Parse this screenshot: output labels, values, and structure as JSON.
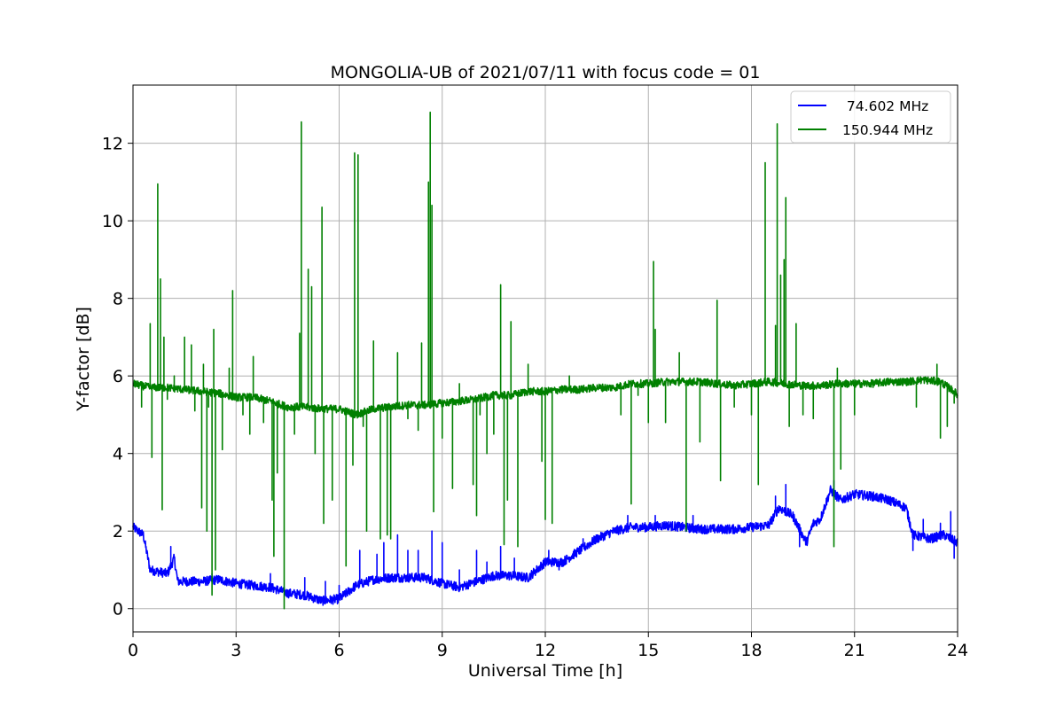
{
  "chart_data": {
    "type": "line",
    "title": "MONGOLIA-UB of 2021/07/11 with focus code = 01",
    "xlabel": "Universal Time [h]",
    "ylabel": "Y-factor [dB]",
    "xlim": [
      0,
      24
    ],
    "ylim": [
      -0.6,
      13.5
    ],
    "xticks": [
      0,
      3,
      6,
      9,
      12,
      15,
      18,
      21,
      24
    ],
    "yticks": [
      0,
      2,
      4,
      6,
      8,
      10,
      12
    ],
    "grid": true,
    "legend_position": "upper-right",
    "series": [
      {
        "name": " 74.602 MHz",
        "color": "#0000ff",
        "baseline": [
          [
            0,
            2.1
          ],
          [
            0.3,
            1.9
          ],
          [
            0.5,
            1.0
          ],
          [
            1.0,
            0.9
          ],
          [
            1.2,
            1.3
          ],
          [
            1.3,
            0.7
          ],
          [
            2.0,
            0.7
          ],
          [
            2.5,
            0.75
          ],
          [
            3.0,
            0.65
          ],
          [
            3.5,
            0.6
          ],
          [
            4.0,
            0.55
          ],
          [
            4.5,
            0.4
          ],
          [
            5.0,
            0.35
          ],
          [
            5.5,
            0.2
          ],
          [
            6.0,
            0.25
          ],
          [
            6.5,
            0.6
          ],
          [
            7.0,
            0.75
          ],
          [
            7.5,
            0.8
          ],
          [
            8.0,
            0.8
          ],
          [
            8.5,
            0.8
          ],
          [
            9.0,
            0.65
          ],
          [
            9.5,
            0.55
          ],
          [
            10.0,
            0.7
          ],
          [
            10.5,
            0.85
          ],
          [
            11.0,
            0.85
          ],
          [
            11.5,
            0.8
          ],
          [
            12.0,
            1.2
          ],
          [
            12.5,
            1.2
          ],
          [
            13.0,
            1.5
          ],
          [
            13.5,
            1.8
          ],
          [
            14.0,
            2.0
          ],
          [
            14.5,
            2.1
          ],
          [
            15.0,
            2.1
          ],
          [
            15.5,
            2.15
          ],
          [
            16.0,
            2.1
          ],
          [
            16.5,
            2.05
          ],
          [
            17.0,
            2.05
          ],
          [
            17.5,
            2.05
          ],
          [
            18.0,
            2.1
          ],
          [
            18.5,
            2.15
          ],
          [
            18.8,
            2.6
          ],
          [
            19.2,
            2.4
          ],
          [
            19.6,
            1.7
          ],
          [
            19.8,
            2.2
          ],
          [
            20.0,
            2.3
          ],
          [
            20.3,
            3.05
          ],
          [
            20.6,
            2.8
          ],
          [
            21.0,
            2.95
          ],
          [
            21.5,
            2.9
          ],
          [
            22.0,
            2.8
          ],
          [
            22.5,
            2.6
          ],
          [
            22.7,
            1.9
          ],
          [
            23.2,
            1.8
          ],
          [
            23.6,
            1.9
          ],
          [
            24.0,
            1.7
          ]
        ],
        "noise": 0.12,
        "spikes": [
          [
            1.1,
            1.6
          ],
          [
            2.3,
            0.9
          ],
          [
            4.0,
            0.9
          ],
          [
            5.0,
            0.8
          ],
          [
            5.6,
            0.7
          ],
          [
            6.0,
            0.6
          ],
          [
            6.6,
            1.5
          ],
          [
            7.1,
            1.4
          ],
          [
            7.3,
            1.7
          ],
          [
            7.7,
            1.9
          ],
          [
            8.0,
            1.5
          ],
          [
            8.3,
            1.5
          ],
          [
            8.7,
            2.0
          ],
          [
            9.0,
            1.7
          ],
          [
            9.5,
            1.0
          ],
          [
            10.0,
            1.5
          ],
          [
            10.3,
            1.2
          ],
          [
            10.7,
            1.6
          ],
          [
            11.1,
            1.3
          ],
          [
            12.1,
            1.5
          ],
          [
            12.4,
            1.0
          ],
          [
            12.6,
            1.3
          ],
          [
            13.1,
            1.8
          ],
          [
            14.4,
            2.4
          ],
          [
            15.2,
            2.4
          ],
          [
            16.3,
            2.4
          ],
          [
            18.7,
            2.9
          ],
          [
            19.0,
            3.2
          ],
          [
            19.4,
            1.6
          ],
          [
            20.4,
            3.3
          ],
          [
            22.7,
            1.5
          ],
          [
            23.0,
            2.3
          ],
          [
            23.5,
            2.2
          ],
          [
            23.8,
            2.5
          ],
          [
            23.9,
            1.3
          ]
        ]
      },
      {
        "name": "150.944 MHz",
        "color": "#008000",
        "baseline": [
          [
            0,
            5.8
          ],
          [
            0.5,
            5.7
          ],
          [
            1.0,
            5.7
          ],
          [
            1.5,
            5.65
          ],
          [
            2.0,
            5.6
          ],
          [
            2.5,
            5.55
          ],
          [
            3.0,
            5.45
          ],
          [
            3.5,
            5.45
          ],
          [
            4.0,
            5.35
          ],
          [
            4.5,
            5.2
          ],
          [
            5.0,
            5.2
          ],
          [
            5.5,
            5.15
          ],
          [
            6.0,
            5.15
          ],
          [
            6.5,
            5.0
          ],
          [
            7.0,
            5.15
          ],
          [
            7.5,
            5.2
          ],
          [
            8.0,
            5.25
          ],
          [
            8.5,
            5.25
          ],
          [
            9.0,
            5.3
          ],
          [
            9.5,
            5.35
          ],
          [
            10.0,
            5.4
          ],
          [
            10.5,
            5.5
          ],
          [
            11.0,
            5.5
          ],
          [
            11.5,
            5.6
          ],
          [
            12.0,
            5.6
          ],
          [
            12.5,
            5.65
          ],
          [
            13.0,
            5.65
          ],
          [
            13.5,
            5.7
          ],
          [
            14.0,
            5.7
          ],
          [
            14.5,
            5.8
          ],
          [
            15.0,
            5.8
          ],
          [
            15.5,
            5.85
          ],
          [
            16.0,
            5.85
          ],
          [
            16.5,
            5.85
          ],
          [
            17.0,
            5.8
          ],
          [
            17.5,
            5.75
          ],
          [
            18.0,
            5.8
          ],
          [
            18.5,
            5.85
          ],
          [
            19.0,
            5.8
          ],
          [
            19.5,
            5.75
          ],
          [
            20.0,
            5.75
          ],
          [
            20.5,
            5.8
          ],
          [
            21.0,
            5.8
          ],
          [
            21.5,
            5.8
          ],
          [
            22.0,
            5.85
          ],
          [
            22.5,
            5.85
          ],
          [
            23.0,
            5.9
          ],
          [
            23.5,
            5.85
          ],
          [
            23.9,
            5.6
          ],
          [
            24.0,
            5.5
          ]
        ],
        "noise": 0.1,
        "spikes": [
          [
            0.25,
            5.2
          ],
          [
            0.5,
            7.35
          ],
          [
            0.55,
            3.9
          ],
          [
            0.72,
            10.95
          ],
          [
            0.8,
            8.5
          ],
          [
            0.85,
            2.55
          ],
          [
            0.9,
            7.0
          ],
          [
            1.0,
            5.4
          ],
          [
            1.2,
            6.0
          ],
          [
            1.5,
            7.0
          ],
          [
            1.7,
            6.8
          ],
          [
            1.8,
            5.1
          ],
          [
            2.0,
            2.6
          ],
          [
            2.05,
            6.3
          ],
          [
            2.15,
            2.0
          ],
          [
            2.2,
            5.2
          ],
          [
            2.3,
            0.35
          ],
          [
            2.35,
            7.2
          ],
          [
            2.4,
            1.0
          ],
          [
            2.6,
            4.1
          ],
          [
            2.8,
            6.2
          ],
          [
            2.9,
            8.2
          ],
          [
            3.2,
            5.0
          ],
          [
            3.4,
            4.5
          ],
          [
            3.5,
            6.5
          ],
          [
            3.8,
            4.8
          ],
          [
            4.05,
            2.8
          ],
          [
            4.1,
            1.35
          ],
          [
            4.2,
            3.5
          ],
          [
            4.4,
            0.0
          ],
          [
            4.5,
            5.2
          ],
          [
            4.7,
            4.5
          ],
          [
            4.85,
            7.1
          ],
          [
            4.9,
            12.55
          ],
          [
            5.1,
            8.75
          ],
          [
            5.2,
            8.3
          ],
          [
            5.3,
            4.0
          ],
          [
            5.5,
            10.35
          ],
          [
            5.55,
            2.2
          ],
          [
            5.8,
            2.8
          ],
          [
            6.0,
            5.2
          ],
          [
            6.2,
            1.1
          ],
          [
            6.4,
            3.7
          ],
          [
            6.45,
            11.75
          ],
          [
            6.55,
            11.7
          ],
          [
            6.7,
            4.7
          ],
          [
            6.8,
            2.0
          ],
          [
            7.0,
            6.9
          ],
          [
            7.2,
            1.8
          ],
          [
            7.4,
            1.9
          ],
          [
            7.5,
            1.8
          ],
          [
            7.7,
            6.6
          ],
          [
            8.0,
            4.9
          ],
          [
            8.3,
            4.6
          ],
          [
            8.4,
            6.85
          ],
          [
            8.6,
            11.0
          ],
          [
            8.65,
            12.8
          ],
          [
            8.7,
            10.4
          ],
          [
            8.75,
            2.5
          ],
          [
            9.0,
            4.4
          ],
          [
            9.3,
            3.1
          ],
          [
            9.5,
            5.8
          ],
          [
            9.9,
            3.2
          ],
          [
            10.0,
            2.4
          ],
          [
            10.1,
            5.0
          ],
          [
            10.3,
            4.0
          ],
          [
            10.5,
            4.5
          ],
          [
            10.7,
            8.35
          ],
          [
            10.8,
            1.65
          ],
          [
            10.9,
            2.8
          ],
          [
            11.0,
            7.4
          ],
          [
            11.2,
            1.6
          ],
          [
            11.5,
            6.3
          ],
          [
            11.9,
            3.8
          ],
          [
            12.0,
            2.3
          ],
          [
            12.2,
            2.2
          ],
          [
            12.7,
            6.0
          ],
          [
            14.2,
            5.0
          ],
          [
            14.5,
            2.7
          ],
          [
            14.7,
            5.5
          ],
          [
            15.0,
            4.8
          ],
          [
            15.15,
            8.95
          ],
          [
            15.2,
            7.2
          ],
          [
            15.5,
            4.8
          ],
          [
            15.9,
            6.6
          ],
          [
            16.1,
            2.0
          ],
          [
            16.2,
            5.8
          ],
          [
            16.5,
            4.3
          ],
          [
            17.0,
            7.95
          ],
          [
            17.1,
            3.3
          ],
          [
            17.5,
            5.2
          ],
          [
            18.0,
            5.0
          ],
          [
            18.2,
            3.2
          ],
          [
            18.4,
            11.5
          ],
          [
            18.7,
            7.3
          ],
          [
            18.75,
            12.5
          ],
          [
            18.85,
            8.6
          ],
          [
            18.95,
            9.0
          ],
          [
            19.0,
            10.6
          ],
          [
            19.1,
            4.7
          ],
          [
            19.3,
            7.35
          ],
          [
            19.5,
            5.0
          ],
          [
            19.8,
            4.9
          ],
          [
            20.4,
            1.6
          ],
          [
            20.5,
            6.2
          ],
          [
            20.6,
            3.6
          ],
          [
            21.0,
            5.0
          ],
          [
            22.8,
            5.2
          ],
          [
            23.4,
            6.3
          ],
          [
            23.5,
            4.4
          ],
          [
            23.7,
            4.7
          ],
          [
            23.9,
            5.3
          ]
        ]
      }
    ]
  }
}
